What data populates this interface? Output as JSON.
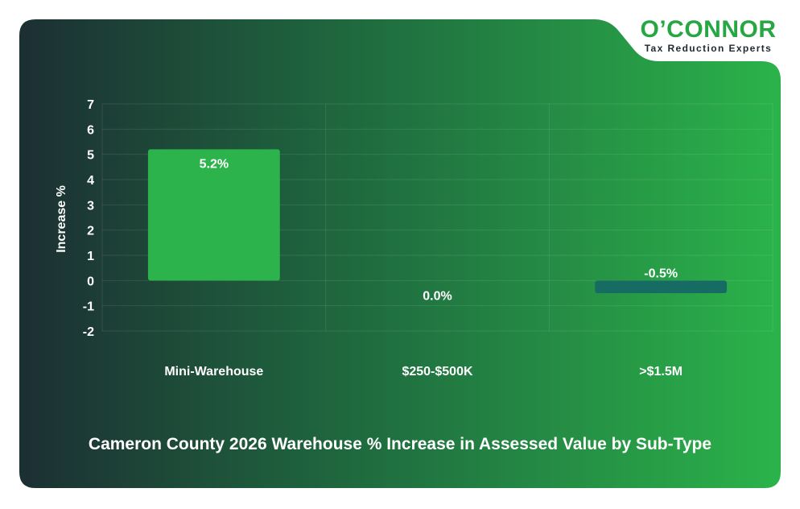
{
  "brand": {
    "name": "O’CONNOR",
    "tagline": "Tax Reduction Experts"
  },
  "colors": {
    "gradient_start": "#1c2f33",
    "gradient_end": "#2bb34a",
    "brand_green": "#27a744",
    "positive_bar": "#2cb34b",
    "negative_bar": "#166b63",
    "text": "#ffffff"
  },
  "chart_data": {
    "type": "bar",
    "title": "Cameron County 2026 Warehouse % Increase in Assessed Value by Sub-Type",
    "xlabel": "",
    "ylabel": "Increase %",
    "categories": [
      "Mini-Warehouse",
      "$250-$500K",
      ">$1.5M"
    ],
    "values": [
      5.2,
      0.0,
      -0.5
    ],
    "data_labels": [
      "5.2%",
      "0.0%",
      "-0.5%"
    ],
    "ylim": [
      -2,
      7
    ],
    "yticks": [
      7,
      6,
      5,
      4,
      3,
      2,
      1,
      0,
      -1,
      -2
    ],
    "grid": true,
    "legend": "none"
  }
}
